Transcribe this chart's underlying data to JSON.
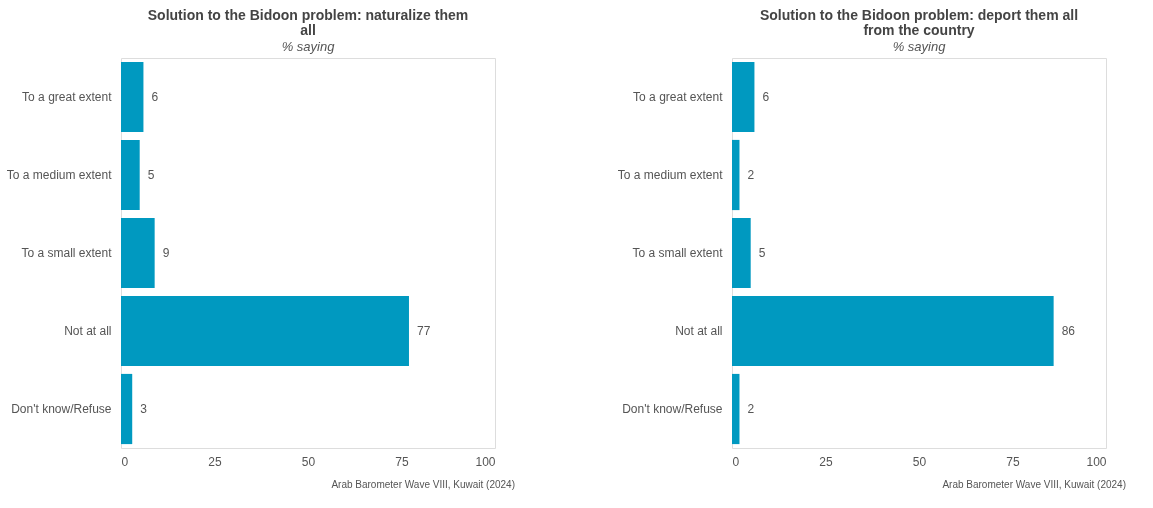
{
  "chart_data": [
    {
      "type": "bar",
      "orientation": "horizontal",
      "title": "Solution to the Bidoon problem: naturalize them all",
      "subtitle": "% saying",
      "categories": [
        "To a great extent",
        "To a medium extent",
        "To a small extent",
        "Not at all",
        "Don't know/Refuse"
      ],
      "values": [
        6,
        5,
        9,
        77,
        3
      ],
      "color": "#0099c0",
      "xlim": [
        0,
        100
      ],
      "xticks": [
        0,
        25,
        50,
        75,
        100
      ],
      "grid": false,
      "data_labels": true,
      "annotations": [
        "Arab Barometer Wave VIII, Kuwait (2024)"
      ]
    },
    {
      "type": "bar",
      "orientation": "horizontal",
      "title": "Solution to the Bidoon problem: deport them all from the country",
      "subtitle": "% saying",
      "categories": [
        "To a great extent",
        "To a medium extent",
        "To a small extent",
        "Not at all",
        "Don't know/Refuse"
      ],
      "values": [
        6,
        2,
        5,
        86,
        2
      ],
      "color": "#0099c0",
      "xlim": [
        0,
        100
      ],
      "xticks": [
        0,
        25,
        50,
        75,
        100
      ],
      "grid": false,
      "data_labels": true,
      "annotations": [
        "Arab Barometer Wave VIII, Kuwait (2024)"
      ]
    }
  ]
}
